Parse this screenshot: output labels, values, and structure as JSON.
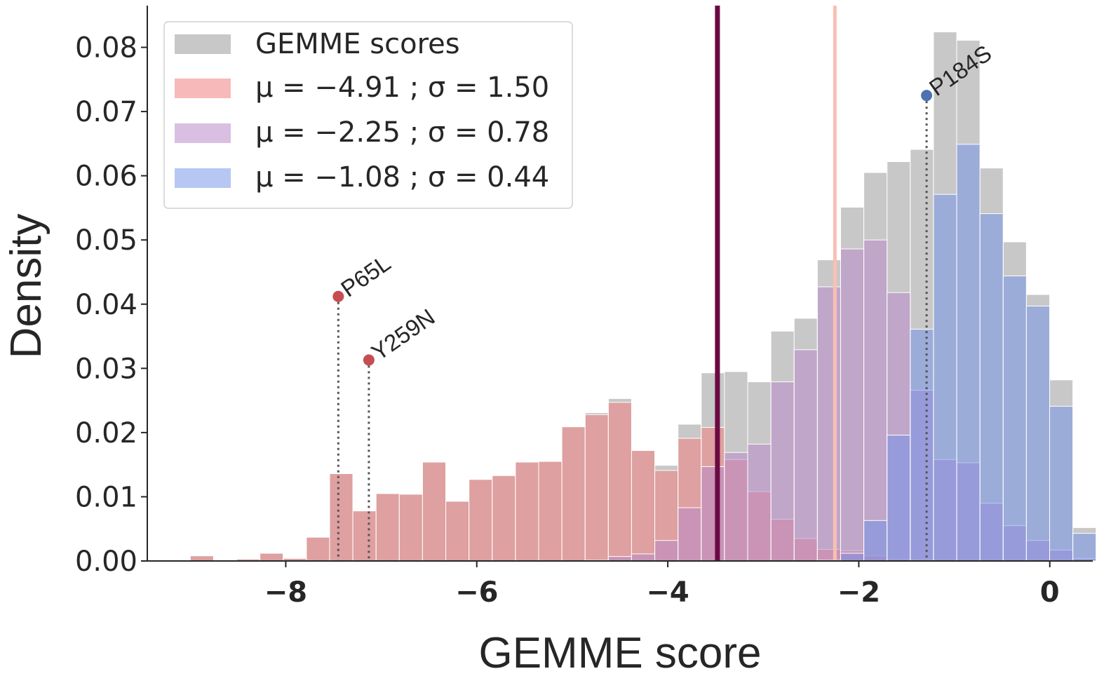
{
  "chart_data": {
    "type": "bar",
    "title": "",
    "xlabel": "GEMME score",
    "ylabel": "Density",
    "xlim": [
      -9.45,
      0.45
    ],
    "ylim": [
      0,
      0.0865
    ],
    "x_ticks": [
      -8,
      -6,
      -4,
      -2,
      0
    ],
    "x_tick_labels": [
      "−8",
      "−6",
      "−4",
      "−2",
      "0"
    ],
    "y_ticks": [
      0.0,
      0.01,
      0.02,
      0.03,
      0.04,
      0.05,
      0.06,
      0.07,
      0.08
    ],
    "y_tick_labels": [
      "0.00",
      "0.01",
      "0.02",
      "0.03",
      "0.04",
      "0.05",
      "0.06",
      "0.07",
      "0.08"
    ],
    "grid": false,
    "legend_position": "top-left",
    "bin_start": -9.0,
    "bin_width": 0.2432,
    "series": [
      {
        "name": "GEMME scores",
        "color": "#b0b0b0",
        "values": [
          0.0008,
          0,
          0.0003,
          0.0012,
          0.0004,
          0.0037,
          0.0136,
          0.0078,
          0.0105,
          0.0104,
          0.0154,
          0.0093,
          0.0127,
          0.0133,
          0.0154,
          0.0155,
          0.0209,
          0.0231,
          0.0253,
          0.0172,
          0.0149,
          0.0213,
          0.0293,
          0.0295,
          0.0279,
          0.0358,
          0.0378,
          0.0469,
          0.0551,
          0.0605,
          0.0622,
          0.0641,
          0.0824,
          0.0811,
          0.0612,
          0.0497,
          0.0415,
          0.0282,
          0.0052
        ]
      },
      {
        "name": "μ = −4.91 ; σ = 1.50",
        "color": "#f08080",
        "values": [
          0.0008,
          0,
          0.0003,
          0.0012,
          0.0004,
          0.0037,
          0.0136,
          0.0078,
          0.0105,
          0.0104,
          0.0154,
          0.0093,
          0.0127,
          0.0133,
          0.0154,
          0.0155,
          0.0209,
          0.0228,
          0.0247,
          0.0172,
          0.0141,
          0.0191,
          0.0208,
          0.0158,
          0.0108,
          0.0065,
          0.0035,
          0.0018,
          0.0016,
          0.0008,
          0.0003,
          0.0002,
          0,
          0,
          0,
          0,
          0,
          0,
          0
        ]
      },
      {
        "name": "μ = −2.25 ; σ = 0.78",
        "color": "#b98ac8",
        "values": [
          0,
          0,
          0,
          0,
          0,
          0,
          0,
          0,
          0,
          0,
          0,
          0,
          0,
          0,
          0,
          0,
          0,
          0.0001,
          0.0007,
          0.0011,
          0.0032,
          0.0083,
          0.0147,
          0.0169,
          0.0182,
          0.0279,
          0.0329,
          0.0427,
          0.0486,
          0.05,
          0.0418,
          0.0266,
          0.0158,
          0.0153,
          0.009,
          0.0055,
          0.0032,
          0.0017,
          0.0004
        ]
      },
      {
        "name": "μ = −1.08 ; σ = 0.44",
        "color": "#6f8fea",
        "values": [
          0,
          0,
          0,
          0,
          0,
          0,
          0,
          0,
          0,
          0,
          0,
          0,
          0,
          0,
          0,
          0,
          0,
          0,
          0,
          0,
          0,
          0,
          0,
          0,
          0,
          0,
          0,
          0.0001,
          0.0012,
          0.0063,
          0.0196,
          0.0361,
          0.0571,
          0.0649,
          0.0541,
          0.0444,
          0.0397,
          0.0241,
          0.0043
        ]
      }
    ],
    "vertical_lines": [
      {
        "x": -3.48,
        "color": "#6b0a42"
      },
      {
        "x": -2.25,
        "color": "#f8c0b4"
      }
    ],
    "annotations": [
      {
        "label": "P65L",
        "x": -7.45,
        "y": 0.0412,
        "color": "#c44e52"
      },
      {
        "label": "Y259N",
        "x": -7.13,
        "y": 0.0313,
        "color": "#c44e52"
      },
      {
        "label": "P184S",
        "x": -1.29,
        "y": 0.0725,
        "color": "#4c72b0"
      }
    ]
  }
}
